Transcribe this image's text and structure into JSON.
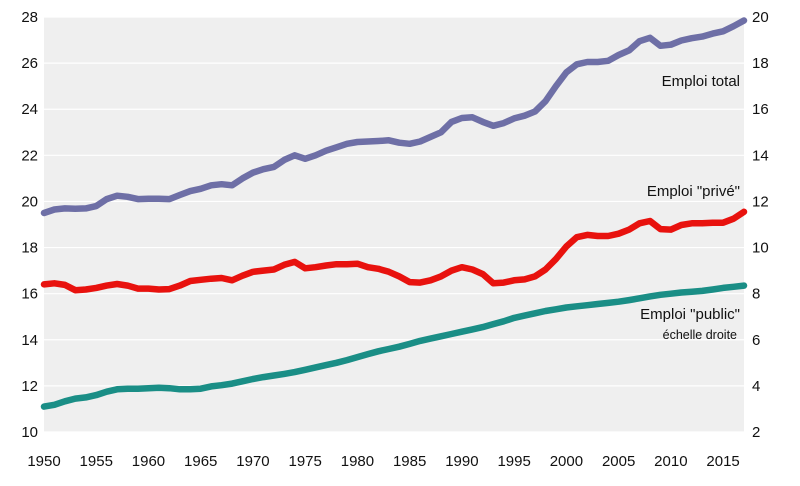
{
  "chart_data": {
    "type": "line",
    "title": "",
    "xlabel": "",
    "ylabel": "",
    "xlim": [
      1950,
      2017
    ],
    "ylim_left": [
      10,
      28
    ],
    "ylim_right": [
      2,
      20
    ],
    "x_ticks": [
      "1950",
      "1955",
      "1960",
      "1965",
      "1970",
      "1975",
      "1980",
      "1985",
      "1990",
      "1995",
      "2000",
      "2005",
      "2010",
      "2015"
    ],
    "y_ticks_left": [
      "10",
      "12",
      "14",
      "16",
      "18",
      "20",
      "22",
      "24",
      "26",
      "28"
    ],
    "y_ticks_right": [
      "2",
      "4",
      "6",
      "8",
      "10",
      "12",
      "14",
      "16",
      "18",
      "20"
    ],
    "grid": "horizontal",
    "x": [
      1950,
      1951,
      1952,
      1953,
      1954,
      1955,
      1956,
      1957,
      1958,
      1959,
      1960,
      1961,
      1962,
      1963,
      1964,
      1965,
      1966,
      1967,
      1968,
      1969,
      1970,
      1971,
      1972,
      1973,
      1974,
      1975,
      1976,
      1977,
      1978,
      1979,
      1980,
      1981,
      1982,
      1983,
      1984,
      1985,
      1986,
      1987,
      1988,
      1989,
      1990,
      1991,
      1992,
      1993,
      1994,
      1995,
      1996,
      1997,
      1998,
      1999,
      2000,
      2001,
      2002,
      2003,
      2004,
      2005,
      2006,
      2007,
      2008,
      2009,
      2010,
      2011,
      2012,
      2013,
      2014,
      2015,
      2016,
      2017
    ],
    "series": [
      {
        "name": "Emploi total",
        "axis": "left",
        "color": "#6e6fa6",
        "values": [
          19.5,
          19.65,
          19.7,
          19.68,
          19.7,
          19.8,
          20.1,
          20.25,
          20.2,
          20.1,
          20.12,
          20.12,
          20.1,
          20.28,
          20.45,
          20.55,
          20.7,
          20.75,
          20.7,
          21.0,
          21.25,
          21.4,
          21.5,
          21.8,
          22.0,
          21.85,
          22.0,
          22.2,
          22.35,
          22.5,
          22.58,
          22.6,
          22.62,
          22.65,
          22.55,
          22.5,
          22.6,
          22.8,
          23.0,
          23.45,
          23.62,
          23.65,
          23.45,
          23.28,
          23.4,
          23.6,
          23.72,
          23.9,
          24.35,
          25.0,
          25.6,
          25.95,
          26.05,
          26.05,
          26.1,
          26.35,
          26.55,
          26.95,
          27.1,
          26.75,
          26.8,
          26.98,
          27.08,
          27.15,
          27.28,
          27.38,
          27.6,
          27.85
        ]
      },
      {
        "name": "Emploi \"privé\"",
        "axis": "left",
        "color": "#e8120e",
        "values": [
          16.4,
          16.45,
          16.38,
          16.15,
          16.18,
          16.25,
          16.35,
          16.42,
          16.35,
          16.22,
          16.22,
          16.18,
          16.2,
          16.35,
          16.55,
          16.6,
          16.65,
          16.68,
          16.58,
          16.78,
          16.95,
          17.0,
          17.05,
          17.25,
          17.38,
          17.1,
          17.15,
          17.22,
          17.28,
          17.28,
          17.3,
          17.15,
          17.08,
          16.95,
          16.75,
          16.5,
          16.48,
          16.58,
          16.75,
          17.0,
          17.15,
          17.05,
          16.85,
          16.45,
          16.48,
          16.58,
          16.62,
          16.75,
          17.05,
          17.5,
          18.05,
          18.45,
          18.55,
          18.5,
          18.5,
          18.6,
          18.78,
          19.05,
          19.15,
          18.8,
          18.78,
          18.98,
          19.05,
          19.05,
          19.08,
          19.08,
          19.25,
          19.55
        ]
      },
      {
        "name": "Emploi \"public\"",
        "axis": "right",
        "color": "#1a8e86",
        "values": [
          3.1,
          3.18,
          3.33,
          3.45,
          3.5,
          3.6,
          3.75,
          3.85,
          3.88,
          3.88,
          3.9,
          3.92,
          3.9,
          3.85,
          3.85,
          3.88,
          3.98,
          4.03,
          4.1,
          4.2,
          4.3,
          4.38,
          4.45,
          4.52,
          4.6,
          4.7,
          4.8,
          4.9,
          5.0,
          5.12,
          5.25,
          5.38,
          5.5,
          5.6,
          5.7,
          5.82,
          5.95,
          6.05,
          6.15,
          6.25,
          6.35,
          6.45,
          6.55,
          6.68,
          6.8,
          6.95,
          7.05,
          7.15,
          7.25,
          7.32,
          7.4,
          7.45,
          7.5,
          7.55,
          7.6,
          7.65,
          7.72,
          7.8,
          7.88,
          7.95,
          8.0,
          8.05,
          8.08,
          8.12,
          8.18,
          8.25,
          8.3,
          8.35
        ]
      }
    ],
    "annotations": {
      "total": "Emploi total",
      "prive": "Emploi \"privé\"",
      "public": "Emploi \"public\"",
      "public_sub": "échelle droite"
    }
  }
}
